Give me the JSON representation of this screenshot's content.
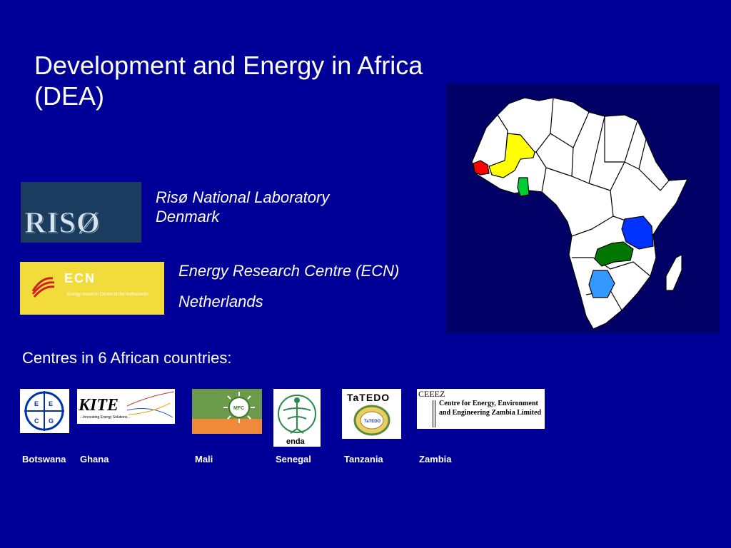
{
  "slide": {
    "title": "Development and Energy in Africa (DEA)",
    "partners": [
      {
        "name": "Risø National Laboratory",
        "country": "Denmark",
        "logo_text": "RISØ"
      },
      {
        "name": "Energy Research Centre (ECN)",
        "country": "Netherlands",
        "logo_text": "ECN",
        "logo_subtext": "Energy research Centre of the Netherlands"
      }
    ],
    "centres_heading": "Centres in 6 African countries:",
    "centres": [
      {
        "country": "Botswana",
        "logo_text": [
          "E",
          "E",
          "C",
          "G"
        ]
      },
      {
        "country": "Ghana",
        "logo_text": "KITE",
        "logo_subtext": "...Innovating Energy Solutions..."
      },
      {
        "country": "Mali",
        "logo_text": "MFC"
      },
      {
        "country": "Senegal",
        "logo_text": "enda"
      },
      {
        "country": "Tanzania",
        "logo_text": "TaTEDO",
        "logo_subtext": "TaTEDO"
      },
      {
        "country": "Zambia",
        "logo_text": "CEEEZ",
        "logo_subtext": "Centre for Energy, Environment and Engineering Zambia Limited"
      }
    ]
  },
  "colors": {
    "background": "#000099",
    "map_background": "#000066",
    "senegal": "#ff0000",
    "mali": "#ffff00",
    "ghana": "#00cc33",
    "tanzania": "#0033ff",
    "zambia": "#007700",
    "botswana": "#3399ff"
  }
}
